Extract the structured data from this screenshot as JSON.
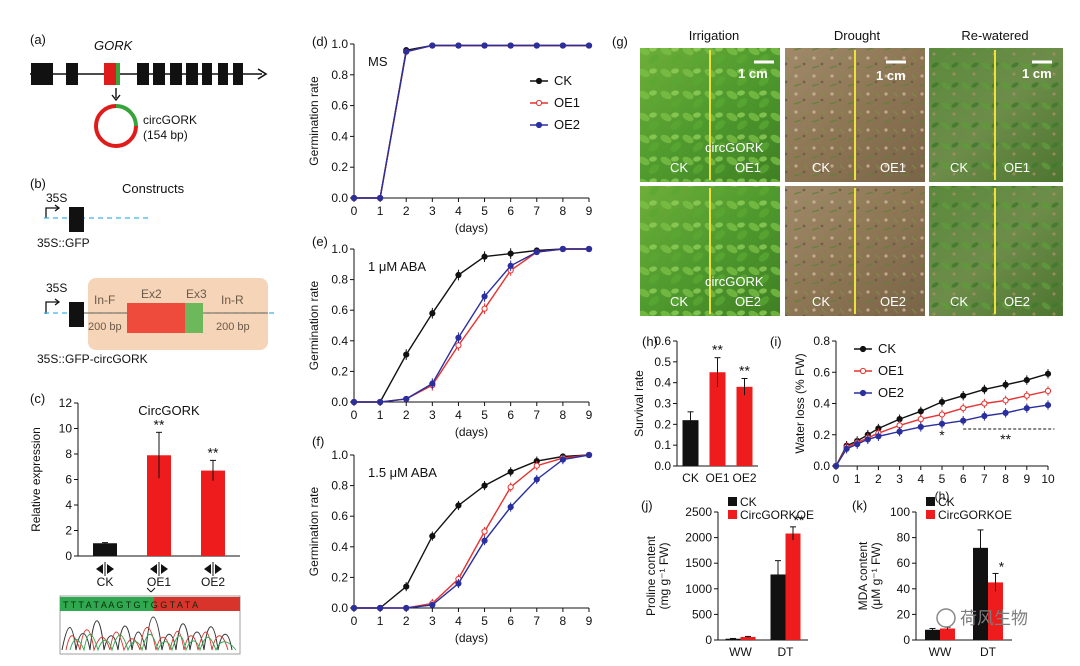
{
  "panels": {
    "a": {
      "letter": "(a)",
      "gene": "GORK",
      "circ_name": "circGORK",
      "circ_len": "(154 bp)"
    },
    "b": {
      "letter": "(b)",
      "promoter1": "35S",
      "title": "Constructs",
      "construct1": "35S::GFP",
      "promoter2": "35S",
      "inf": "In-F",
      "ex2": "Ex2",
      "ex3": "Ex3",
      "inr": "In-R",
      "bp_left": "200 bp",
      "bp_right": "200 bp",
      "construct2": "35S::GFP-circGORK"
    },
    "g": {
      "letter": "(g)",
      "columns": [
        "Irrigation",
        "Drought",
        "Re-watered"
      ],
      "scale": "1 cm",
      "labels_row1": [
        "circGORK",
        "CK",
        "OE1"
      ],
      "labels_row2": [
        "circGORK",
        "CK",
        "OE2"
      ]
    }
  },
  "watermark": "荷风生物",
  "colors": {
    "ck": "#111111",
    "oe1": "#e8312f",
    "oe2": "#2a2f9e",
    "bar_red": "#ee1c1c"
  },
  "chart_data": [
    {
      "id": "c",
      "letter": "(c)",
      "type": "bar",
      "title": "CircGORK",
      "ylabel": "Relative expression",
      "ylim": [
        0,
        12
      ],
      "yticks": [
        0,
        2,
        4,
        6,
        8,
        10,
        12
      ],
      "categories": [
        "CK",
        "OE1",
        "OE2"
      ],
      "values": [
        1.0,
        7.9,
        6.7
      ],
      "errors": [
        0.05,
        1.8,
        0.8
      ],
      "significance": [
        "",
        "**",
        "**"
      ],
      "sequence": "T T T A T A A G T G T G G T A T A"
    },
    {
      "id": "d",
      "letter": "(d)",
      "type": "line",
      "title": "MS",
      "xlabel": "(days)",
      "ylabel": "Germination rate",
      "xlim": [
        0,
        9
      ],
      "ylim": [
        0,
        1
      ],
      "x": [
        0,
        1,
        2,
        3,
        4,
        5,
        6,
        7,
        8,
        9
      ],
      "series": [
        {
          "name": "CK",
          "values": [
            0,
            0,
            0.96,
            0.99,
            0.99,
            0.99,
            0.99,
            0.99,
            0.99,
            0.99
          ]
        },
        {
          "name": "OE1",
          "values": [
            0,
            0,
            0.95,
            0.99,
            0.99,
            0.99,
            0.99,
            0.99,
            0.99,
            0.99
          ]
        },
        {
          "name": "OE2",
          "values": [
            0,
            0,
            0.95,
            0.99,
            0.99,
            0.99,
            0.99,
            0.99,
            0.99,
            0.99
          ]
        }
      ]
    },
    {
      "id": "e",
      "letter": "(e)",
      "type": "line",
      "title": "1 μM ABA",
      "xlabel": "(days)",
      "ylabel": "Germination rate",
      "xlim": [
        0,
        9
      ],
      "ylim": [
        0,
        1
      ],
      "x": [
        0,
        1,
        2,
        3,
        4,
        5,
        6,
        7,
        8,
        9
      ],
      "series": [
        {
          "name": "CK",
          "values": [
            0,
            0,
            0.31,
            0.58,
            0.83,
            0.95,
            0.97,
            0.99,
            1.0,
            1.0
          ]
        },
        {
          "name": "OE1",
          "values": [
            0,
            0,
            0.02,
            0.11,
            0.37,
            0.61,
            0.86,
            0.98,
            1.0,
            1.0
          ]
        },
        {
          "name": "OE2",
          "values": [
            0,
            0,
            0.02,
            0.12,
            0.42,
            0.69,
            0.89,
            0.98,
            1.0,
            1.0
          ]
        }
      ]
    },
    {
      "id": "f",
      "letter": "(f)",
      "type": "line",
      "title": "1.5 μM ABA",
      "xlabel": "(days)",
      "ylabel": "Germination rate",
      "xlim": [
        0,
        9
      ],
      "ylim": [
        0,
        1
      ],
      "x": [
        0,
        1,
        2,
        3,
        4,
        5,
        6,
        7,
        8,
        9
      ],
      "series": [
        {
          "name": "CK",
          "values": [
            0,
            0,
            0.14,
            0.47,
            0.67,
            0.8,
            0.89,
            0.96,
            0.99,
            1.0
          ]
        },
        {
          "name": "OE1",
          "values": [
            0,
            0,
            0.0,
            0.03,
            0.19,
            0.5,
            0.79,
            0.93,
            0.98,
            1.0
          ]
        },
        {
          "name": "OE2",
          "values": [
            0,
            0,
            0.0,
            0.02,
            0.16,
            0.44,
            0.66,
            0.84,
            0.97,
            1.0
          ]
        }
      ]
    },
    {
      "id": "h",
      "letter": "(h)",
      "type": "bar",
      "ylabel": "Survival rate",
      "ylim": [
        0,
        0.6
      ],
      "yticks": [
        0,
        0.1,
        0.2,
        0.3,
        0.4,
        0.5,
        0.6
      ],
      "categories": [
        "CK",
        "OE1",
        "OE2"
      ],
      "values": [
        0.22,
        0.45,
        0.38
      ],
      "errors": [
        0.04,
        0.07,
        0.04
      ],
      "significance": [
        "",
        "**",
        "**"
      ]
    },
    {
      "id": "i",
      "letter": "(i)",
      "type": "line",
      "xlabel": "(h)",
      "ylabel": "Water loss (% FW)",
      "xlim": [
        0,
        10
      ],
      "ylim": [
        0,
        0.8
      ],
      "x": [
        0,
        0.5,
        1,
        1.5,
        2,
        3,
        4,
        5,
        6,
        7,
        8,
        9,
        10
      ],
      "series": [
        {
          "name": "CK",
          "values": [
            0,
            0.13,
            0.16,
            0.2,
            0.24,
            0.3,
            0.35,
            0.41,
            0.45,
            0.49,
            0.52,
            0.55,
            0.59
          ]
        },
        {
          "name": "OE1",
          "values": [
            0,
            0.12,
            0.15,
            0.18,
            0.21,
            0.26,
            0.3,
            0.33,
            0.37,
            0.4,
            0.42,
            0.45,
            0.48
          ]
        },
        {
          "name": "OE2",
          "values": [
            0,
            0.11,
            0.14,
            0.17,
            0.19,
            0.22,
            0.25,
            0.27,
            0.29,
            0.32,
            0.34,
            0.37,
            0.39
          ]
        }
      ],
      "annotations": [
        "*",
        "**"
      ]
    },
    {
      "id": "j",
      "letter": "(j)",
      "type": "bar",
      "ylabel": "Proline content (mg g⁻¹ FW)",
      "ylim": [
        0,
        2500
      ],
      "yticks": [
        0,
        500,
        1000,
        1500,
        2000,
        2500
      ],
      "categories": [
        "WW",
        "DT"
      ],
      "series": [
        {
          "name": "CK",
          "values": [
            25,
            1280
          ],
          "errors": [
            5,
            270
          ]
        },
        {
          "name": "CircGORKOE",
          "values": [
            60,
            2080
          ],
          "errors": [
            10,
            130
          ]
        }
      ],
      "significance": [
        "",
        "**"
      ]
    },
    {
      "id": "k",
      "letter": "(k)",
      "type": "bar",
      "ylabel": "MDA content (μM g⁻¹ FW)",
      "ylim": [
        0,
        100
      ],
      "yticks": [
        0,
        20,
        40,
        60,
        80,
        100
      ],
      "categories": [
        "WW",
        "DT"
      ],
      "series": [
        {
          "name": "CK",
          "values": [
            8,
            72
          ],
          "errors": [
            1,
            14
          ]
        },
        {
          "name": "CircGORKOE",
          "values": [
            9,
            45
          ],
          "errors": [
            1,
            7
          ]
        }
      ],
      "significance": [
        "",
        "*"
      ]
    }
  ]
}
